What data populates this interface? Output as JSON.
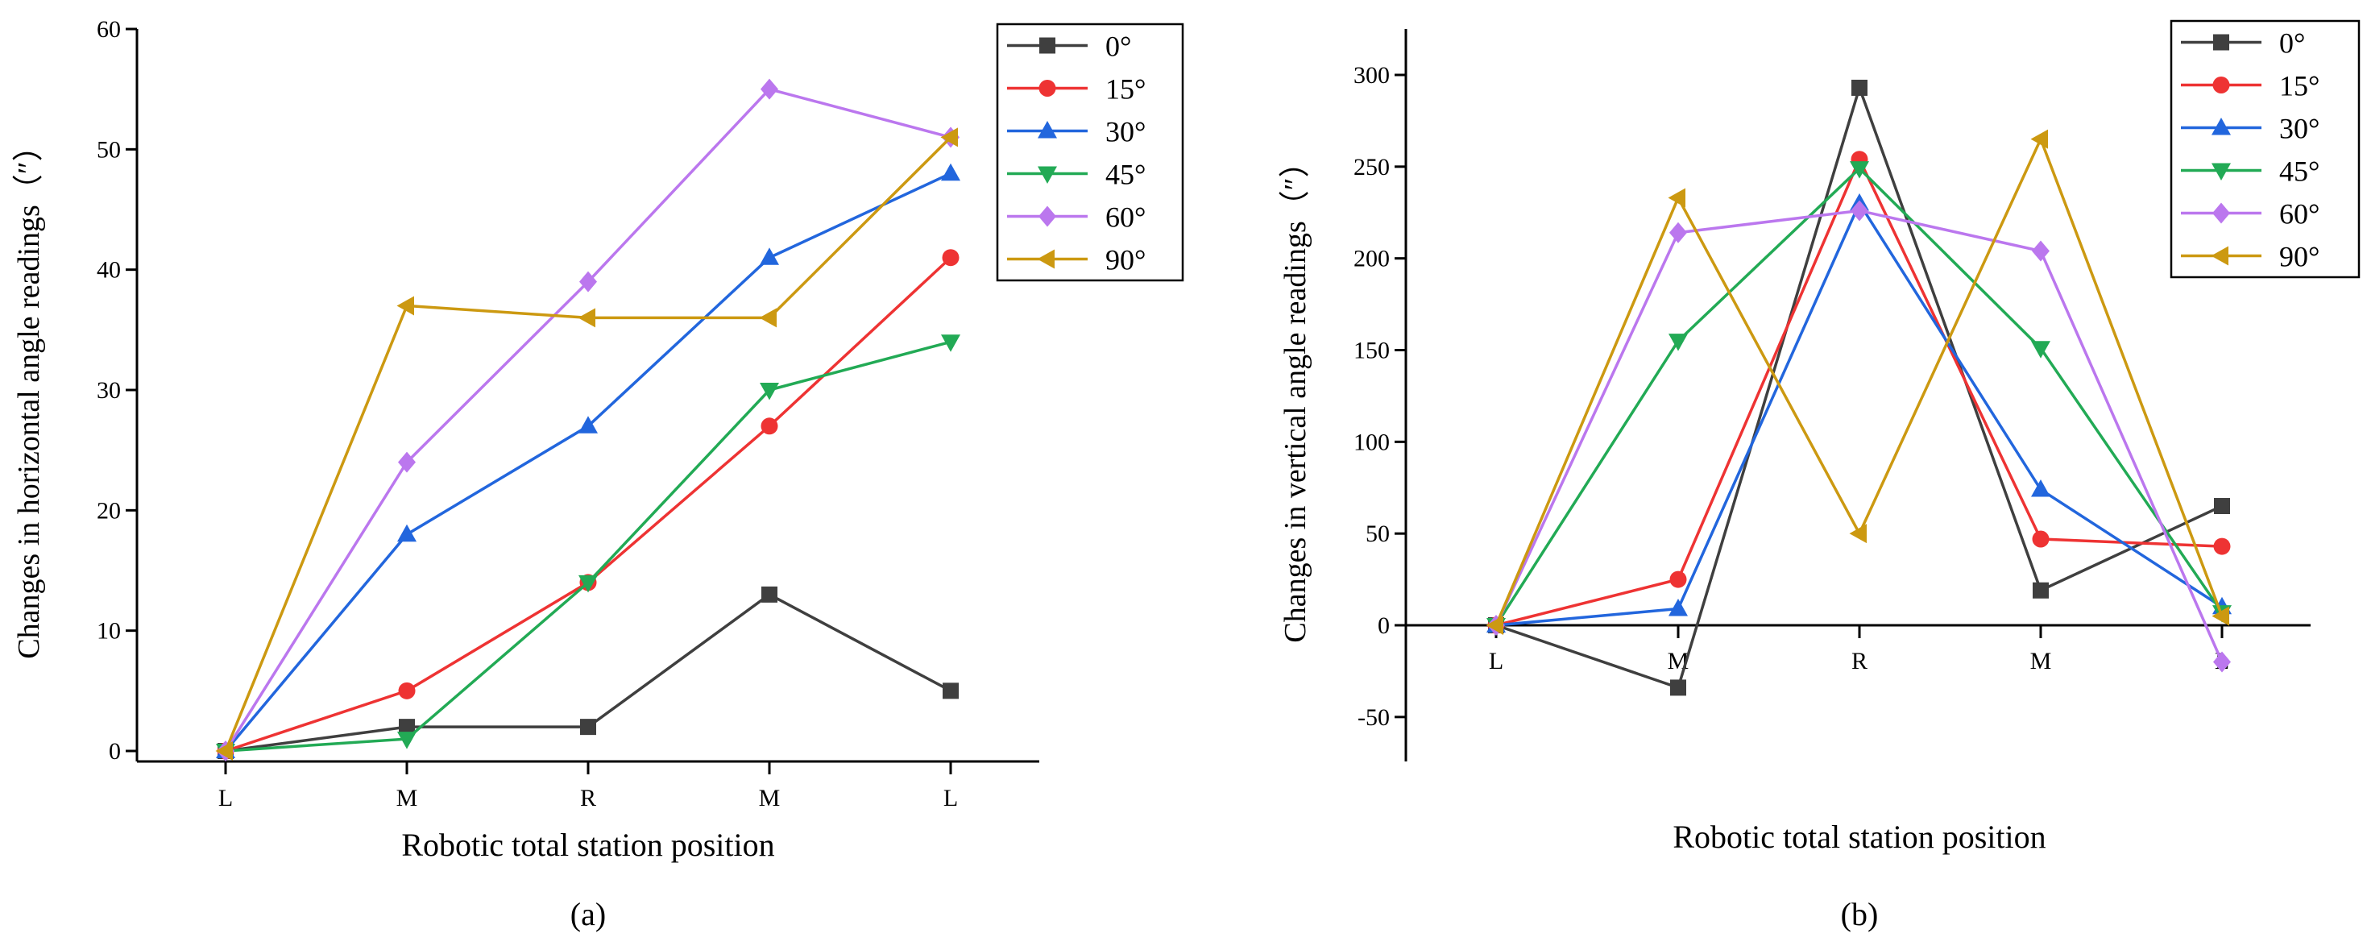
{
  "chart_data": [
    {
      "type": "line",
      "panel_label": "(a)",
      "xlabel": "Robotic total station position",
      "ylabel": "Changes in horizontal angle readings（″）",
      "categories": [
        "L",
        "M",
        "R",
        "M",
        "L"
      ],
      "ylim": [
        0,
        60
      ],
      "yticks": [
        0,
        10,
        20,
        30,
        40,
        50,
        60
      ],
      "legend_position": "top-right",
      "series": [
        {
          "name": "0°",
          "color": "#3f3f3f",
          "marker": "square",
          "values": [
            0,
            2,
            2,
            13,
            5
          ]
        },
        {
          "name": "15°",
          "color": "#ee3333",
          "marker": "circle",
          "values": [
            0,
            5,
            14,
            27,
            41
          ]
        },
        {
          "name": "30°",
          "color": "#2266dd",
          "marker": "triangle-up",
          "values": [
            0,
            18,
            27,
            41,
            48
          ]
        },
        {
          "name": "45°",
          "color": "#22aa55",
          "marker": "triangle-down",
          "values": [
            0,
            1,
            14,
            30,
            34
          ]
        },
        {
          "name": "60°",
          "color": "#bb77ee",
          "marker": "diamond",
          "values": [
            0,
            24,
            39,
            55,
            51
          ]
        },
        {
          "name": "90°",
          "color": "#cc9911",
          "marker": "triangle-left",
          "values": [
            0,
            37,
            36,
            36,
            51
          ]
        }
      ]
    },
    {
      "type": "line",
      "panel_label": "(b)",
      "xlabel": "Robotic total station position",
      "ylabel": "Changes in vertical angle readings（″）",
      "categories": [
        "L",
        "M",
        "R",
        "M",
        "L"
      ],
      "ylim": [
        -80,
        320
      ],
      "yticks": [
        -50,
        0,
        50,
        100,
        150,
        200,
        250,
        300
      ],
      "legend_position": "top-right",
      "series": [
        {
          "name": "0°",
          "color": "#3f3f3f",
          "marker": "square",
          "values": [
            0,
            -34,
            293,
            19,
            65
          ]
        },
        {
          "name": "15°",
          "color": "#ee3333",
          "marker": "circle",
          "values": [
            0,
            25,
            254,
            47,
            43
          ]
        },
        {
          "name": "30°",
          "color": "#2266dd",
          "marker": "triangle-up",
          "values": [
            0,
            9,
            230,
            74,
            10
          ]
        },
        {
          "name": "45°",
          "color": "#22aa55",
          "marker": "triangle-down",
          "values": [
            0,
            155,
            249,
            151,
            7
          ]
        },
        {
          "name": "60°",
          "color": "#bb77ee",
          "marker": "diamond",
          "values": [
            0,
            214,
            226,
            204,
            -20
          ]
        },
        {
          "name": "90°",
          "color": "#cc9911",
          "marker": "triangle-left",
          "values": [
            0,
            233,
            50,
            265,
            5
          ]
        }
      ]
    }
  ]
}
